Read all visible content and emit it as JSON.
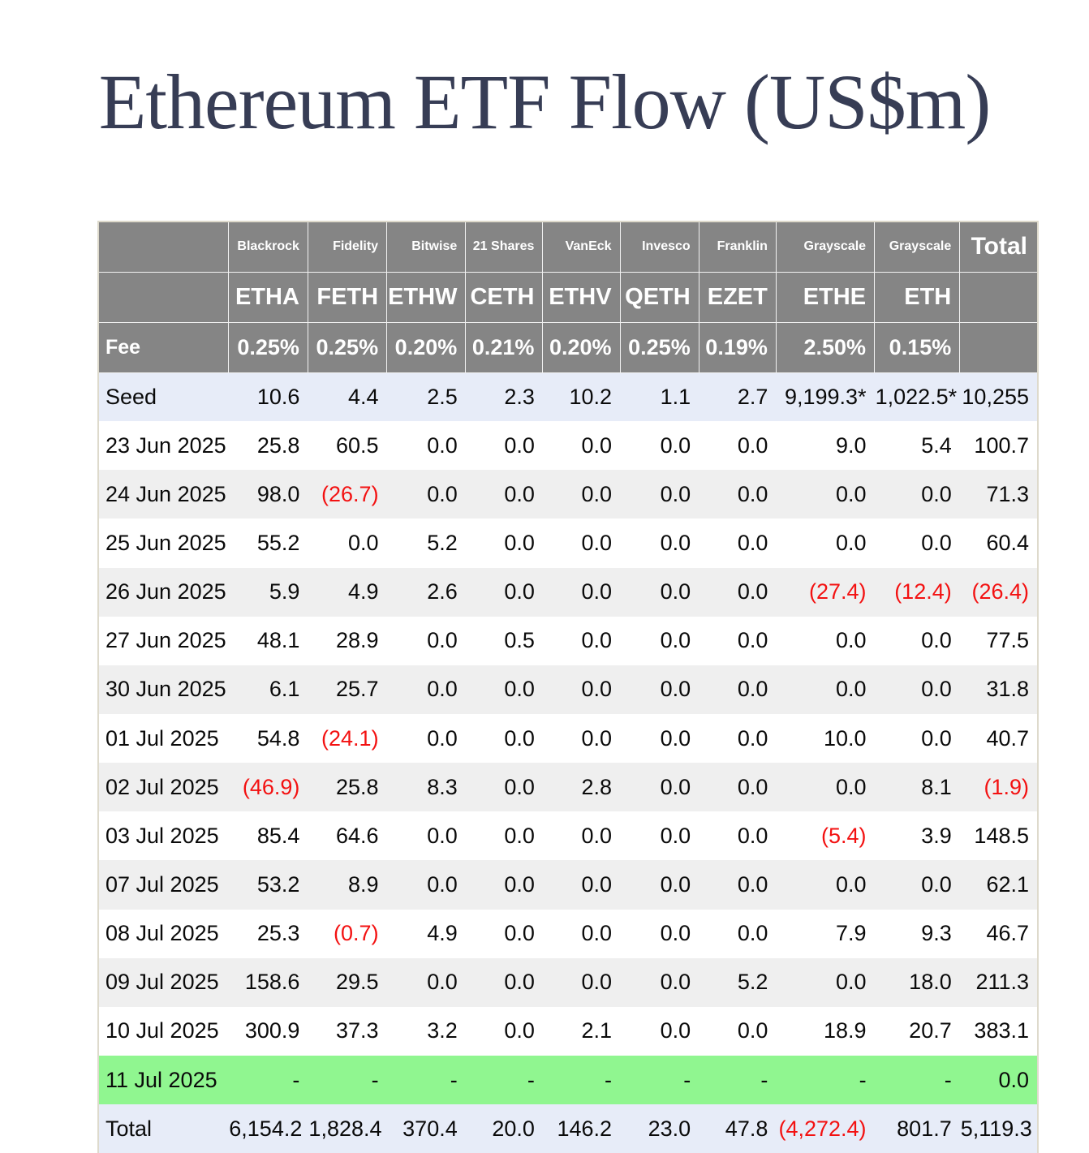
{
  "page": {
    "title": "Ethereum ETF Flow (US$m)"
  },
  "colors": {
    "header_bg": "#858585",
    "header_text": "#ffffff",
    "header_divider": "#f2f2f2",
    "seed_total_row_bg": "#e7ecf8",
    "alt_row_bg": "#efefef",
    "current_day_row_bg": "#90f690",
    "negative_value": "#f31111",
    "title_text": "#373d55",
    "table_border": "#dedacc",
    "body_text": "#0a0a0a"
  },
  "chart_data": {
    "type": "table",
    "title": "Ethereum ETF Flow (US$m)",
    "header": {
      "issuers": [
        "",
        "Blackrock",
        "Fidelity",
        "Bitwise",
        "21 Shares",
        "VanEck",
        "Invesco",
        "Franklin",
        "Grayscale",
        "Grayscale",
        "Total"
      ],
      "tickers": [
        "",
        "ETHA",
        "FETH",
        "ETHW",
        "CETH",
        "ETHV",
        "QETH",
        "EZET",
        "ETHE",
        "ETH",
        ""
      ],
      "fee_label": "Fee",
      "fees": [
        "0.25%",
        "0.25%",
        "0.20%",
        "0.21%",
        "0.20%",
        "0.25%",
        "0.19%",
        "2.50%",
        "0.15%",
        ""
      ]
    },
    "rows": [
      {
        "label": "Seed",
        "bg": "lavender",
        "values": [
          "10.6",
          "4.4",
          "2.5",
          "2.3",
          "10.2",
          "1.1",
          "2.7",
          "9,199.3*",
          "1,022.5*",
          "10,255"
        ]
      },
      {
        "label": "23 Jun 2025",
        "bg": "white",
        "values": [
          "25.8",
          "60.5",
          "0.0",
          "0.0",
          "0.0",
          "0.0",
          "0.0",
          "9.0",
          "5.4",
          "100.7"
        ]
      },
      {
        "label": "24 Jun 2025",
        "bg": "gray",
        "values": [
          "98.0",
          "(26.7)",
          "0.0",
          "0.0",
          "0.0",
          "0.0",
          "0.0",
          "0.0",
          "0.0",
          "71.3"
        ]
      },
      {
        "label": "25 Jun 2025",
        "bg": "white",
        "values": [
          "55.2",
          "0.0",
          "5.2",
          "0.0",
          "0.0",
          "0.0",
          "0.0",
          "0.0",
          "0.0",
          "60.4"
        ]
      },
      {
        "label": "26 Jun 2025",
        "bg": "gray",
        "values": [
          "5.9",
          "4.9",
          "2.6",
          "0.0",
          "0.0",
          "0.0",
          "0.0",
          "(27.4)",
          "(12.4)",
          "(26.4)"
        ]
      },
      {
        "label": "27 Jun 2025",
        "bg": "white",
        "values": [
          "48.1",
          "28.9",
          "0.0",
          "0.5",
          "0.0",
          "0.0",
          "0.0",
          "0.0",
          "0.0",
          "77.5"
        ]
      },
      {
        "label": "30 Jun 2025",
        "bg": "gray",
        "values": [
          "6.1",
          "25.7",
          "0.0",
          "0.0",
          "0.0",
          "0.0",
          "0.0",
          "0.0",
          "0.0",
          "31.8"
        ]
      },
      {
        "label": "01 Jul 2025",
        "bg": "white",
        "values": [
          "54.8",
          "(24.1)",
          "0.0",
          "0.0",
          "0.0",
          "0.0",
          "0.0",
          "10.0",
          "0.0",
          "40.7"
        ]
      },
      {
        "label": "02 Jul 2025",
        "bg": "gray",
        "values": [
          "(46.9)",
          "25.8",
          "8.3",
          "0.0",
          "2.8",
          "0.0",
          "0.0",
          "0.0",
          "8.1",
          "(1.9)"
        ]
      },
      {
        "label": "03 Jul 2025",
        "bg": "white",
        "values": [
          "85.4",
          "64.6",
          "0.0",
          "0.0",
          "0.0",
          "0.0",
          "0.0",
          "(5.4)",
          "3.9",
          "148.5"
        ]
      },
      {
        "label": "07 Jul 2025",
        "bg": "gray",
        "values": [
          "53.2",
          "8.9",
          "0.0",
          "0.0",
          "0.0",
          "0.0",
          "0.0",
          "0.0",
          "0.0",
          "62.1"
        ]
      },
      {
        "label": "08 Jul 2025",
        "bg": "white",
        "values": [
          "25.3",
          "(0.7)",
          "4.9",
          "0.0",
          "0.0",
          "0.0",
          "0.0",
          "7.9",
          "9.3",
          "46.7"
        ]
      },
      {
        "label": "09 Jul 2025",
        "bg": "gray",
        "values": [
          "158.6",
          "29.5",
          "0.0",
          "0.0",
          "0.0",
          "0.0",
          "5.2",
          "0.0",
          "18.0",
          "211.3"
        ]
      },
      {
        "label": "10 Jul 2025",
        "bg": "white",
        "values": [
          "300.9",
          "37.3",
          "3.2",
          "0.0",
          "2.1",
          "0.0",
          "0.0",
          "18.9",
          "20.7",
          "383.1"
        ]
      },
      {
        "label": "11 Jul 2025",
        "bg": "green",
        "values": [
          "-",
          "-",
          "-",
          "-",
          "-",
          "-",
          "-",
          "-",
          "-",
          "0.0"
        ]
      },
      {
        "label": "Total",
        "bg": "lavender",
        "values": [
          "6,154.2",
          "1,828.4",
          "370.4",
          "20.0",
          "146.2",
          "23.0",
          "47.8",
          "(4,272.4)",
          "801.7",
          "5,119.3"
        ]
      }
    ],
    "layout": {
      "grid": "header-divider-lines-only",
      "legend": "none",
      "notes": "negative values shown in parentheses and red; * marks seed values for Grayscale conversions"
    }
  }
}
